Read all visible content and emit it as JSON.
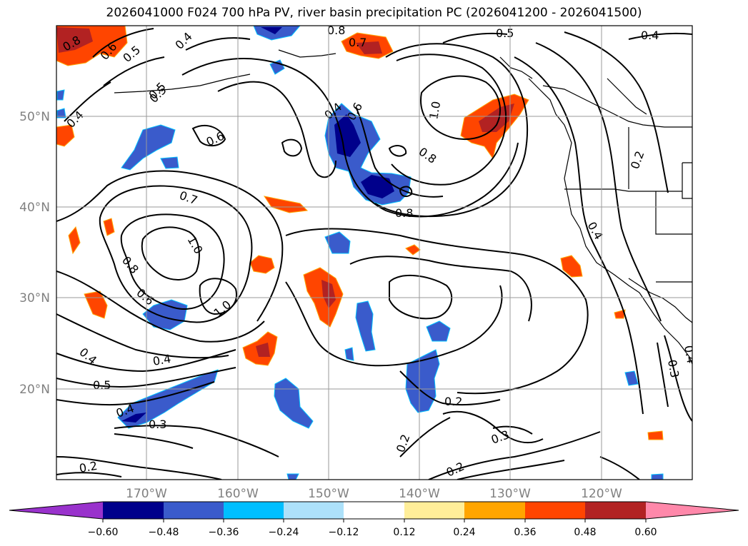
{
  "title": "2026041000 F024 700 hPa PV, river basin precipitation PC (2026041200 - 2026041500)",
  "lat_labels": [
    "50°N",
    "40°N",
    "30°N",
    "20°N"
  ],
  "lon_labels": [
    "170°W",
    "160°W",
    "150°W",
    "140°W",
    "130°W",
    "120°W"
  ],
  "contour_labels": [
    "0.8",
    "0.6",
    "0.5",
    "0.4",
    "0.5",
    "0.4",
    "0.6",
    "0.4",
    "0.8",
    "0.7",
    "0.5",
    "0.4",
    "1.0",
    "0.6",
    "0.8",
    "0.8",
    "0.7",
    "1.0",
    "0.8",
    "0.6",
    "1.0",
    "0.4",
    "0.4",
    "0.5",
    "0.2",
    "0.3",
    "0.2",
    "0.3",
    "0.2",
    "0.2",
    "0.3",
    "0.4",
    "0.4",
    "0.2",
    "0.5",
    "0.4"
  ],
  "colorbar": {
    "ticks": [
      "−0.60",
      "−0.48",
      "−0.36",
      "−0.24",
      "−0.12",
      "0.12",
      "0.24",
      "0.36",
      "0.48",
      "0.60"
    ],
    "colors": [
      "#9932CC",
      "#00008B",
      "#3A5BCB",
      "#00BFFF",
      "#ADE1FA",
      "#FFFFFF",
      "#FFEE99",
      "#FFA500",
      "#FF4500",
      "#B22222",
      "#FF88AA"
    ]
  }
}
